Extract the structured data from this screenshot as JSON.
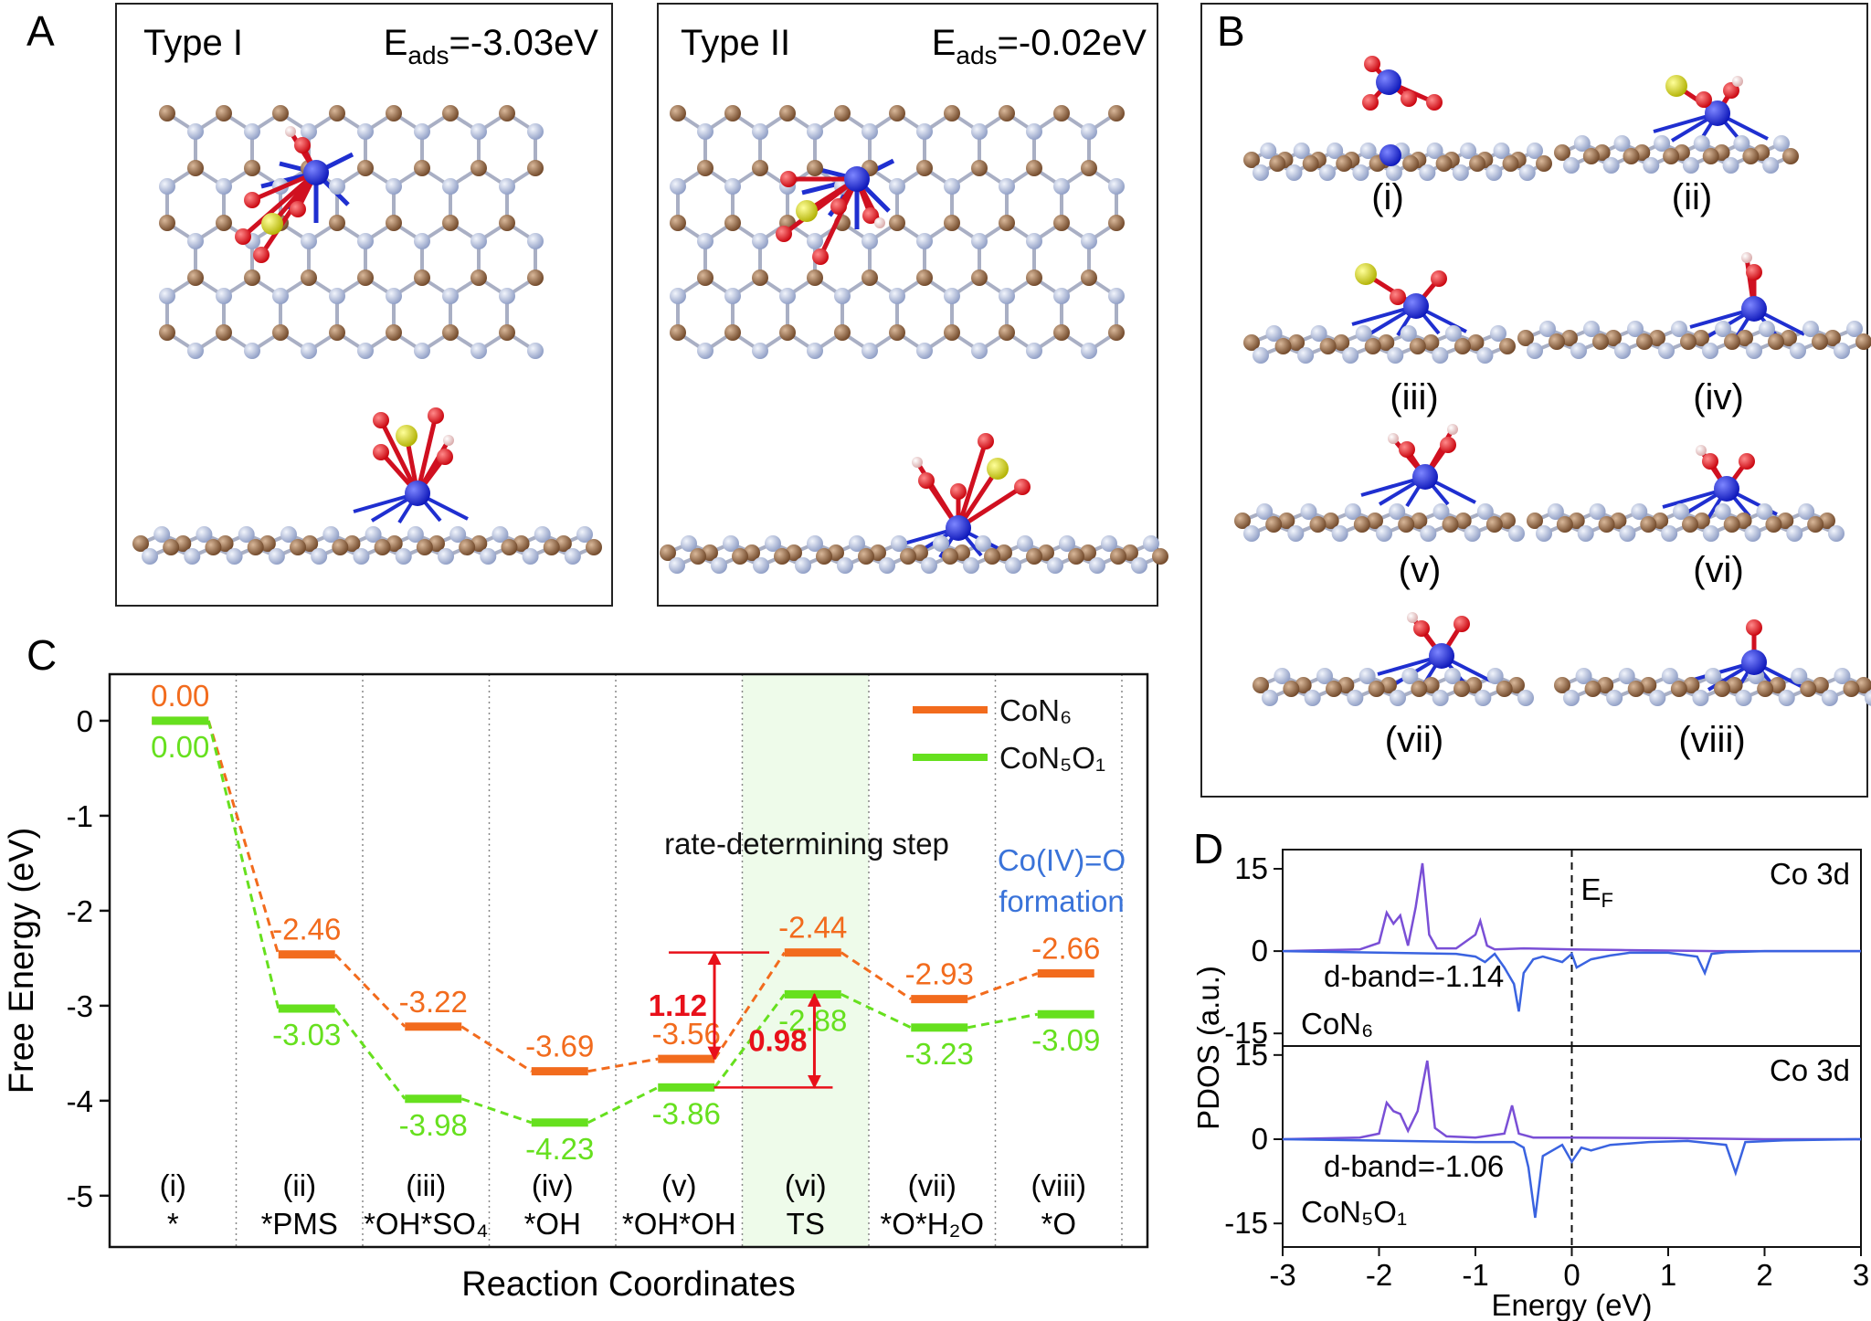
{
  "panel_labels": [
    "A",
    "B",
    "C",
    "D"
  ],
  "panel_a": [
    {
      "name": "Type I",
      "energy": {
        "symbol": "E",
        "subscript": "ads",
        "text": "=-3.03eV"
      }
    },
    {
      "name": "Type II",
      "energy": {
        "symbol": "E",
        "subscript": "ads",
        "text": "=-0.02eV"
      }
    }
  ],
  "panel_b": {
    "labels": [
      "(i)",
      "(ii)",
      "(iii)",
      "(iv)",
      "(v)",
      "(vi)",
      "(vii)",
      "(viii)"
    ]
  },
  "chart_data": [
    {
      "type": "step",
      "xlabel": "Reaction Coordinates",
      "ylabel": "Free Energy (eV)",
      "categories": [
        "(i)",
        "(ii)",
        "(iii)",
        "(iv)",
        "(v)",
        "(vi)",
        "(vii)",
        "(viii)"
      ],
      "category_descriptions": [
        "*",
        "*PMS",
        "*OH*SO₄",
        "*OH",
        "*OH*OH",
        "TS",
        "*O*H₂O",
        "*O"
      ],
      "series": [
        {
          "name": "CoN₆",
          "color": "#f26b1d",
          "values": [
            0,
            -2.46,
            -3.22,
            -3.69,
            -3.56,
            -2.44,
            -2.93,
            -2.66
          ],
          "value_labels": [
            "0.00",
            "-2.46",
            "-3.22",
            "-3.69",
            "-3.56",
            "-2.44",
            "-2.93",
            "-2.66"
          ]
        },
        {
          "name": "CoN₅O₁",
          "color": "#66e01e",
          "values": [
            0,
            -3.03,
            -3.98,
            -4.23,
            -3.86,
            -2.88,
            -3.23,
            -3.09
          ],
          "value_labels": [
            "0.00",
            "-3.03",
            "-3.98",
            "-4.23",
            "-3.86",
            "-2.88",
            "-3.23",
            "-3.09"
          ]
        }
      ],
      "barriers": [
        1.12,
        0.98
      ],
      "annotations": {
        "step": "rate-determining step",
        "formation": [
          "Co(IV)=O",
          "formation"
        ]
      },
      "ylim": [
        -5.54,
        0.49
      ],
      "yticks": [
        0,
        -1,
        -2,
        -3,
        -4,
        -5
      ],
      "legend": "upper right"
    },
    {
      "type": "line",
      "label": "Co 3d",
      "annotation": "d-band=-1.14",
      "system": "CoN₆",
      "fermi": {
        "symbol": "E",
        "subscript": "F"
      },
      "ylabel": "PDOS (a.u.)",
      "xlim": [
        -3,
        3
      ],
      "ylim": [
        -17.3,
        18.5
      ],
      "yticks": [
        15,
        0,
        -15
      ],
      "series": [
        {
          "color": "#7a4fd6",
          "x": [
            -3,
            -2.2,
            -2.0,
            -1.92,
            -1.85,
            -1.78,
            -1.7,
            -1.62,
            -1.55,
            -1.48,
            -1.4,
            -1.2,
            -1.0,
            -0.95,
            -0.88,
            -0.8,
            -0.5,
            0,
            0.5,
            1,
            1.5,
            2,
            3
          ],
          "values": [
            0,
            0.3,
            1.5,
            7,
            5,
            6.5,
            1,
            8,
            16,
            3,
            0.5,
            0.5,
            3,
            5.5,
            1,
            0.3,
            0.5,
            0.3,
            0.2,
            0.1,
            0,
            0,
            0
          ]
        },
        {
          "color": "#3a63e0",
          "x": [
            -3,
            -1.2,
            -1.0,
            -0.9,
            -0.8,
            -0.7,
            -0.6,
            -0.55,
            -0.5,
            -0.4,
            -0.3,
            -0.1,
            0,
            0.05,
            0.2,
            0.4,
            0.6,
            1,
            1.3,
            1.38,
            1.45,
            1.6,
            2,
            3
          ],
          "values": [
            0,
            -0.5,
            -1,
            -2,
            -0.5,
            -3,
            -6,
            -11,
            -4,
            -1.5,
            -1,
            -2,
            -0.5,
            -3,
            -1.5,
            -0.8,
            -0.3,
            -0.3,
            -1,
            -4,
            -0.5,
            -0.2,
            0,
            0
          ]
        }
      ]
    },
    {
      "type": "line",
      "label": "Co 3d",
      "annotation": "d-band=-1.06",
      "system": "CoN₅O₁",
      "xlabel": "Energy (eV)",
      "xlim": [
        -3,
        3
      ],
      "xticks": [
        -3,
        -2,
        -1,
        0,
        1,
        2,
        3
      ],
      "ylim": [
        -19.2,
        16.6
      ],
      "yticks": [
        15,
        0,
        -15
      ],
      "series": [
        {
          "color": "#7a4fd6",
          "x": [
            -3,
            -2.2,
            -2.0,
            -1.92,
            -1.85,
            -1.78,
            -1.7,
            -1.6,
            -1.5,
            -1.42,
            -1.3,
            -1.0,
            -0.7,
            -0.62,
            -0.55,
            -0.4,
            0,
            1,
            2,
            3
          ],
          "values": [
            0,
            0.3,
            1,
            6.5,
            5,
            4.5,
            1.5,
            5,
            14,
            2,
            0.5,
            0.3,
            1,
            6,
            1,
            0.3,
            0.3,
            0.2,
            0,
            0
          ]
        },
        {
          "color": "#3a63e0",
          "x": [
            -3,
            -1,
            -0.6,
            -0.5,
            -0.45,
            -0.38,
            -0.3,
            -0.1,
            0,
            0.1,
            0.2,
            0.4,
            0.8,
            1.2,
            1.6,
            1.7,
            1.8,
            2.2,
            3
          ],
          "values": [
            0,
            -0.5,
            -0.5,
            -1.5,
            -5,
            -14,
            -3,
            -1,
            -4,
            -1.5,
            -2,
            -1,
            -0.5,
            -0.3,
            -1,
            -6,
            -0.5,
            -0.2,
            0
          ]
        }
      ]
    }
  ]
}
